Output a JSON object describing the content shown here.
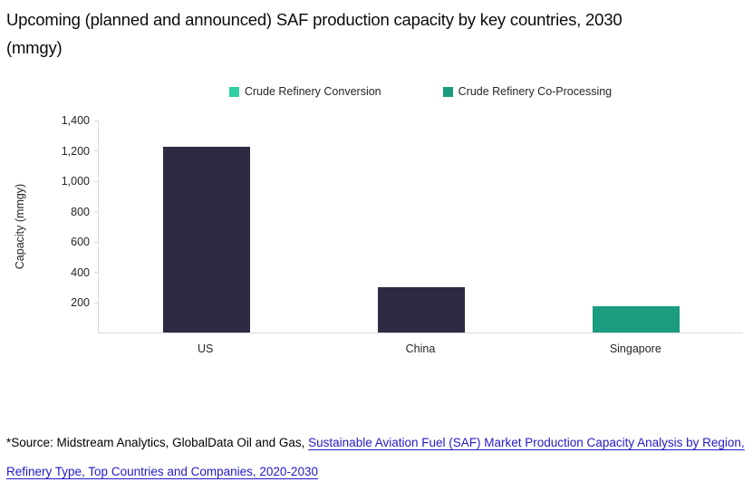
{
  "title": {
    "line1": "Upcoming (planned and announced) SAF production capacity by key countries, 2030",
    "line2": "(mmgy)"
  },
  "legend": [
    {
      "label": "Crude Refinery Conversion",
      "color": "#2fcfa2"
    },
    {
      "label": "Crude Refinery Co-Processing",
      "color": "#1b9b80"
    }
  ],
  "chart_data": {
    "type": "bar",
    "title": "Upcoming (planned and announced) SAF production capacity by key countries, 2030 (mmgy)",
    "categories": [
      "US",
      "China",
      "Singapore"
    ],
    "values": [
      1220,
      300,
      170
    ],
    "bar_colors": [
      "#2e2a41",
      "#2e2a41",
      "#1b9b80"
    ],
    "xlabel": "",
    "ylabel": "Capacity (mmgy)",
    "ylim": [
      0,
      1400
    ],
    "yticks": [
      200,
      400,
      600,
      800,
      1000,
      1200,
      1400
    ],
    "ytick_labels": [
      "200",
      "400",
      "600",
      "800",
      "1,000",
      "1,200",
      "1,400"
    ],
    "legend_entries": [
      "Crude Refinery Conversion",
      "Crude Refinery Co-Processing"
    ],
    "legend_position": "top",
    "grid": false,
    "axis_color": "#d9d9d9"
  },
  "footer": {
    "source_prefix": "*Source: Midstream Analytics, GlobalData Oil and Gas, ",
    "link_text": "Sustainable Aviation Fuel (SAF) Market Production Capacity Analysis by Region, Refinery Type, Top Countries and Companies, 2020-2030",
    "link_color": "#2219c8"
  }
}
